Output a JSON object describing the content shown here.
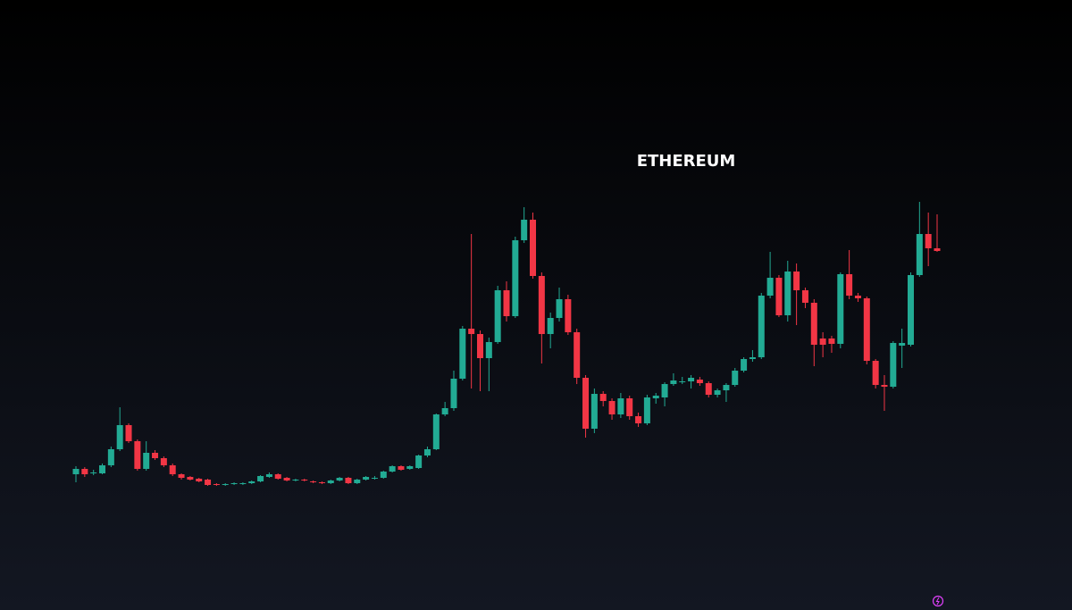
{
  "chart_data": {
    "type": "candlestick",
    "title": "ETHEREUM",
    "up_color": "#22ab94",
    "down_color": "#f23645",
    "ylim": [
      0,
      600
    ],
    "open": [
      69,
      75,
      70,
      70,
      79,
      97,
      124,
      106,
      75,
      93,
      87,
      79,
      69,
      66,
      64,
      63,
      58,
      57,
      58,
      58,
      59,
      61,
      66,
      69,
      65,
      62,
      63,
      61,
      60,
      59,
      62,
      65,
      59,
      63,
      64,
      65,
      72,
      78,
      75,
      76,
      90,
      97,
      136,
      143,
      176,
      232,
      226,
      199,
      217,
      275,
      246,
      331,
      354,
      291,
      226,
      244,
      265,
      228,
      177,
      120,
      159,
      151,
      136,
      154,
      134,
      126,
      154,
      155,
      170,
      172,
      173,
      175,
      171,
      158,
      163,
      169,
      185,
      198,
      200,
      269,
      289,
      247,
      296,
      275,
      261,
      221,
      221,
      215,
      293,
      269,
      266,
      196,
      169,
      167,
      213,
      214,
      292,
      338,
      322
    ],
    "high": [
      78,
      77,
      74,
      81,
      100,
      144,
      126,
      108,
      106,
      96,
      89,
      81,
      70,
      67,
      65,
      64,
      59,
      59,
      60,
      60,
      62,
      68,
      71,
      70,
      66,
      64,
      64,
      62,
      61,
      63,
      66,
      66,
      64,
      67,
      67,
      73,
      79,
      79,
      79,
      91,
      100,
      137,
      150,
      185,
      235,
      338,
      230,
      222,
      280,
      285,
      335,
      368,
      362,
      295,
      250,
      278,
      270,
      232,
      180,
      165,
      162,
      154,
      160,
      157,
      138,
      158,
      160,
      172,
      182,
      178,
      180,
      178,
      173,
      165,
      171,
      188,
      200,
      208,
      272,
      318,
      292,
      308,
      305,
      278,
      265,
      228,
      224,
      295,
      320,
      272,
      268,
      198,
      180,
      218,
      232,
      295,
      374,
      362,
      360
    ],
    "low": [
      60,
      66,
      68,
      69,
      77,
      95,
      104,
      73,
      73,
      85,
      77,
      67,
      63,
      62,
      60,
      56,
      56,
      56,
      57,
      57,
      58,
      60,
      65,
      63,
      61,
      61,
      61,
      59,
      58,
      58,
      61,
      58,
      58,
      62,
      63,
      64,
      71,
      73,
      74,
      75,
      88,
      96,
      134,
      140,
      174,
      165,
      162,
      162,
      215,
      240,
      244,
      328,
      288,
      193,
      210,
      240,
      225,
      170,
      110,
      115,
      145,
      130,
      132,
      130,
      122,
      124,
      148,
      145,
      168,
      170,
      165,
      168,
      155,
      155,
      150,
      167,
      183,
      195,
      198,
      266,
      245,
      240,
      236,
      255,
      190,
      200,
      205,
      210,
      265,
      262,
      192,
      165,
      140,
      165,
      188,
      212,
      290,
      302,
      318
    ],
    "close": [
      75,
      69,
      71,
      79,
      97,
      124,
      106,
      75,
      93,
      87,
      79,
      69,
      65,
      63,
      61,
      57,
      57,
      58,
      59,
      59,
      61,
      67,
      69,
      64,
      62,
      63,
      62,
      60,
      59,
      62,
      65,
      59,
      63,
      66,
      65,
      72,
      78,
      74,
      78,
      90,
      97,
      136,
      143,
      176,
      232,
      226,
      199,
      217,
      275,
      246,
      331,
      354,
      291,
      226,
      244,
      265,
      228,
      177,
      120,
      159,
      151,
      136,
      154,
      134,
      126,
      155,
      157,
      170,
      174,
      173,
      177,
      171,
      158,
      163,
      169,
      185,
      198,
      200,
      269,
      289,
      247,
      296,
      275,
      261,
      214,
      214,
      215,
      293,
      269,
      266,
      196,
      169,
      167,
      216,
      216,
      292,
      338,
      322,
      319
    ]
  }
}
